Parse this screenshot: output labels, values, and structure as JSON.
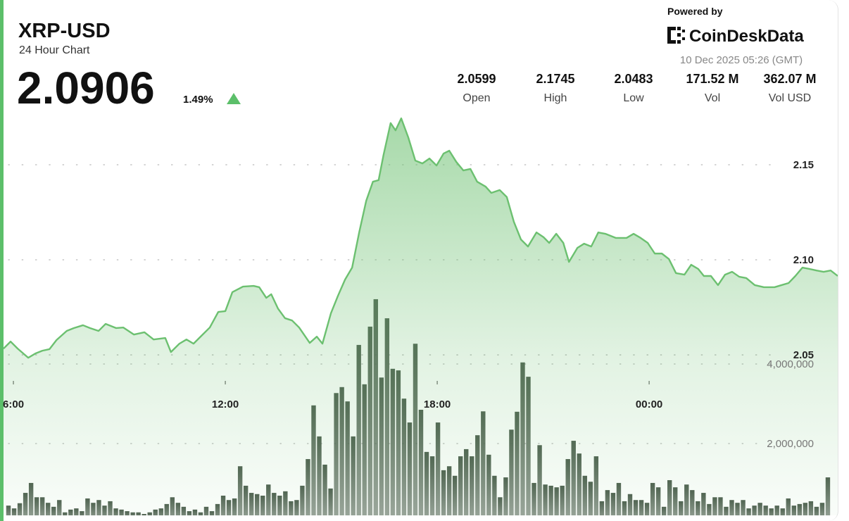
{
  "header": {
    "symbol": "XRP-USD",
    "subtitle": "24 Hour Chart",
    "price": "2.0906",
    "change": "1.49%",
    "powered_by": "Powered by",
    "brand": "CoinDeskData",
    "timestamp": "10 Dec 2025 05:26 (GMT)"
  },
  "stats": [
    {
      "value": "2.0599",
      "label": "Open"
    },
    {
      "value": "2.1745",
      "label": "High"
    },
    {
      "value": "2.0483",
      "label": "Low"
    },
    {
      "value": "171.52 M",
      "label": "Vol"
    },
    {
      "value": "362.07 M",
      "label": "Vol USD"
    }
  ],
  "chart_data": [
    {
      "type": "area",
      "color": "#6cc070",
      "grid": true,
      "xlim": [
        5.72,
        29.34
      ],
      "xticks": [
        {
          "value": 6,
          "label": "6:00"
        },
        {
          "value": 12,
          "label": "12:00"
        },
        {
          "value": 18,
          "label": "18:00"
        },
        {
          "value": 24,
          "label": "00:00"
        }
      ],
      "ylim": [
        1.9656,
        2.1774
      ],
      "yticks": [
        2.05,
        {
          "value": 2.1,
          "label": "2.10"
        },
        2.15
      ],
      "x": [
        5.72,
        5.92,
        6.12,
        6.42,
        6.62,
        6.82,
        7.02,
        7.22,
        7.51,
        7.71,
        7.97,
        8.17,
        8.41,
        8.61,
        8.91,
        9.11,
        9.41,
        9.71,
        9.97,
        10.3,
        10.46,
        10.7,
        10.9,
        11.1,
        11.3,
        11.56,
        11.8,
        12.0,
        12.2,
        12.5,
        12.8,
        12.96,
        13.16,
        13.3,
        13.49,
        13.69,
        13.89,
        14.09,
        14.39,
        14.59,
        14.75,
        14.99,
        15.19,
        15.39,
        15.59,
        15.79,
        15.99,
        16.18,
        16.34,
        16.48,
        16.68,
        16.82,
        16.98,
        17.18,
        17.38,
        17.58,
        17.78,
        17.98,
        18.18,
        18.34,
        18.54,
        18.74,
        18.94,
        19.13,
        19.37,
        19.53,
        19.77,
        19.97,
        20.17,
        20.37,
        20.57,
        20.81,
        21.01,
        21.17,
        21.37,
        21.57,
        21.73,
        21.97,
        22.16,
        22.36,
        22.56,
        22.76,
        23.06,
        23.36,
        23.56,
        23.76,
        23.96,
        24.16,
        24.36,
        24.56,
        24.76,
        25.0,
        25.19,
        25.39,
        25.55,
        25.75,
        25.95,
        26.15,
        26.35,
        26.55,
        26.75,
        26.99,
        27.25,
        27.55,
        27.75,
        27.95,
        28.14,
        28.34,
        28.54,
        28.74,
        28.94,
        29.14,
        29.34
      ],
      "values": [
        2.0533,
        2.057,
        2.0533,
        2.0485,
        2.0507,
        2.0522,
        2.053,
        2.0578,
        2.0626,
        2.0641,
        2.0656,
        2.0641,
        2.0626,
        2.0663,
        2.0641,
        2.0644,
        2.0607,
        2.0619,
        2.0581,
        2.0589,
        2.0515,
        2.0559,
        2.0581,
        2.0559,
        2.0596,
        2.0644,
        2.0726,
        2.073,
        2.083,
        2.0859,
        2.0863,
        2.0856,
        2.08,
        2.0819,
        2.0744,
        2.0693,
        2.0681,
        2.0644,
        2.0563,
        2.0596,
        2.0559,
        2.0719,
        2.0811,
        2.0896,
        2.0959,
        2.1144,
        2.1311,
        2.1411,
        2.1419,
        2.1552,
        2.1719,
        2.1681,
        2.1744,
        2.1644,
        2.1522,
        2.1507,
        2.1533,
        2.1496,
        2.1559,
        2.1574,
        2.1515,
        2.147,
        2.1478,
        2.1411,
        2.1385,
        2.1352,
        2.1367,
        2.133,
        2.12,
        2.1107,
        2.107,
        2.1144,
        2.1119,
        2.1089,
        2.1137,
        2.1089,
        2.0989,
        2.1063,
        2.1085,
        2.107,
        2.1144,
        2.1137,
        2.1115,
        2.1115,
        2.1137,
        2.1115,
        2.1089,
        2.1033,
        2.1033,
        2.1004,
        2.093,
        2.0922,
        2.0974,
        2.0952,
        2.0915,
        2.0915,
        2.0867,
        2.0922,
        2.0937,
        2.0911,
        2.0904,
        2.0867,
        2.0856,
        2.0856,
        2.0867,
        2.0878,
        2.0915,
        2.0959,
        2.0952,
        2.0944,
        2.0937,
        2.0944,
        2.0915
      ]
    },
    {
      "type": "bar",
      "color": "#4f5f50",
      "grid": true,
      "xlim": [
        5.72,
        29.34
      ],
      "ylim": [
        0,
        10320000
      ],
      "yticks": [
        {
          "value": 2000000,
          "label": "2,000,000"
        },
        {
          "value": 4000000,
          "label": "4,000,000"
        }
      ],
      "x": [
        5.86,
        6.02,
        6.18,
        6.34,
        6.5,
        6.66,
        6.82,
        6.98,
        7.14,
        7.3,
        7.46,
        7.62,
        7.78,
        7.94,
        8.1,
        8.26,
        8.42,
        8.58,
        8.74,
        8.9,
        9.06,
        9.22,
        9.38,
        9.54,
        9.7,
        9.86,
        10.02,
        10.18,
        10.34,
        10.5,
        10.66,
        10.82,
        10.98,
        11.14,
        11.3,
        11.46,
        11.62,
        11.78,
        11.94,
        12.1,
        12.26,
        12.42,
        12.58,
        12.74,
        12.9,
        13.06,
        13.22,
        13.38,
        13.54,
        13.7,
        13.86,
        14.02,
        14.18,
        14.34,
        14.5,
        14.66,
        14.82,
        14.98,
        15.14,
        15.3,
        15.46,
        15.62,
        15.78,
        15.94,
        16.1,
        16.26,
        16.42,
        16.58,
        16.74,
        16.9,
        17.06,
        17.22,
        17.38,
        17.54,
        17.7,
        17.86,
        18.02,
        18.18,
        18.34,
        18.5,
        18.66,
        18.82,
        18.98,
        19.14,
        19.3,
        19.46,
        19.62,
        19.78,
        19.94,
        20.1,
        20.26,
        20.42,
        20.58,
        20.74,
        20.9,
        21.06,
        21.22,
        21.38,
        21.54,
        21.7,
        21.86,
        22.02,
        22.18,
        22.34,
        22.5,
        22.66,
        22.82,
        22.98,
        23.14,
        23.3,
        23.46,
        23.62,
        23.78,
        23.94,
        24.1,
        24.26,
        24.42,
        24.58,
        24.74,
        24.9,
        25.06,
        25.22,
        25.38,
        25.54,
        25.7,
        25.86,
        26.02,
        26.18,
        26.34,
        26.5,
        26.66,
        26.82,
        26.98,
        27.14,
        27.3,
        27.46,
        27.62,
        27.78,
        27.94,
        28.1,
        28.26,
        28.42,
        28.58,
        28.74,
        28.9,
        29.06
      ],
      "values": [
        440000,
        370000,
        500000,
        760000,
        1010000,
        650000,
        650000,
        510000,
        410000,
        580000,
        270000,
        340000,
        370000,
        300000,
        620000,
        510000,
        580000,
        440000,
        550000,
        370000,
        340000,
        300000,
        270000,
        270000,
        230000,
        270000,
        340000,
        370000,
        480000,
        650000,
        510000,
        410000,
        300000,
        340000,
        270000,
        410000,
        300000,
        480000,
        690000,
        580000,
        620000,
        1430000,
        940000,
        760000,
        730000,
        690000,
        970000,
        760000,
        690000,
        800000,
        550000,
        580000,
        940000,
        1610000,
        2960000,
        2180000,
        1470000,
        870000,
        3270000,
        3420000,
        3060000,
        2180000,
        4480000,
        3490000,
        4940000,
        5630000,
        3660000,
        5150000,
        3880000,
        3840000,
        3130000,
        2530000,
        4510000,
        2850000,
        1790000,
        1680000,
        2530000,
        1330000,
        1430000,
        1190000,
        1680000,
        1860000,
        1680000,
        2210000,
        2810000,
        1720000,
        1190000,
        650000,
        1150000,
        2350000,
        2800000,
        4040000,
        3680000,
        1010000,
        1960000,
        970000,
        940000,
        900000,
        940000,
        1610000,
        2070000,
        1750000,
        1190000,
        1040000,
        1680000,
        550000,
        830000,
        760000,
        1010000,
        550000,
        730000,
        580000,
        580000,
        510000,
        1010000,
        900000,
        410000,
        1080000,
        900000,
        550000,
        970000,
        830000,
        550000,
        760000,
        480000,
        650000,
        650000,
        410000,
        580000,
        510000,
        580000,
        370000,
        440000,
        510000,
        440000,
        370000,
        440000,
        370000,
        620000,
        440000,
        480000,
        510000,
        550000,
        410000,
        510000,
        1150000
      ]
    }
  ]
}
